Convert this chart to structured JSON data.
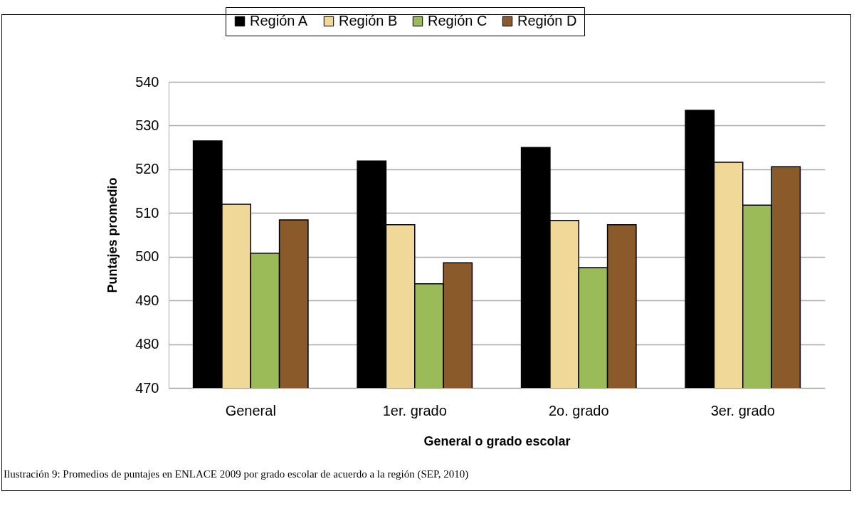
{
  "chart_data": {
    "type": "bar",
    "xlabel": "General o grado escolar",
    "ylabel": "Puntajes promedio",
    "categories": [
      "General",
      "1er. grado",
      "2o. grado",
      "3er. grado"
    ],
    "series": [
      {
        "name": "Región A",
        "color": "#000000",
        "values": [
          526.5,
          521.9,
          525.0,
          533.5
        ]
      },
      {
        "name": "Región B",
        "color": "#f0d898",
        "values": [
          512.0,
          507.3,
          508.3,
          521.6
        ]
      },
      {
        "name": "Región C",
        "color": "#9bbb59",
        "values": [
          500.8,
          493.8,
          497.5,
          511.8
        ]
      },
      {
        "name": "Región D",
        "color": "#8b5a2b",
        "values": [
          508.4,
          498.6,
          507.3,
          520.6
        ]
      }
    ],
    "ylim": [
      470,
      540
    ],
    "yticks": [
      470,
      480,
      490,
      500,
      510,
      520,
      530,
      540
    ],
    "grid": "y",
    "legend": "top",
    "annotations": [
      "Ilustración 9: Promedios de puntajes en ENLACE 2009 por grado escolar de acuerdo a la región (SEP, 2010)"
    ]
  }
}
